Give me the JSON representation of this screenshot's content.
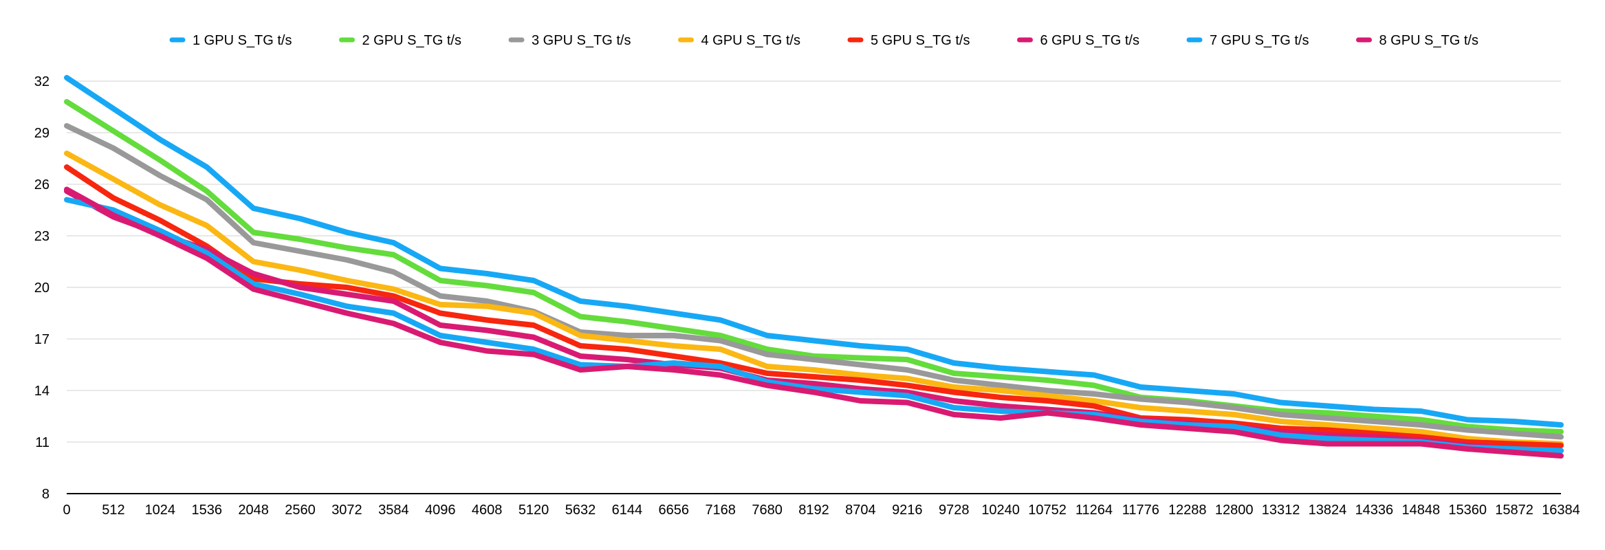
{
  "chart_data": {
    "type": "line",
    "legend_position": "top",
    "grid": true,
    "ylim": [
      8,
      32
    ],
    "yticks": [
      8,
      11,
      14,
      17,
      20,
      23,
      26,
      29,
      32
    ],
    "categories": [
      "0",
      "512",
      "1024",
      "1536",
      "2048",
      "2560",
      "3072",
      "3584",
      "4096",
      "4608",
      "5120",
      "5632",
      "6144",
      "6656",
      "7168",
      "7680",
      "8192",
      "8704",
      "9216",
      "9728",
      "10240",
      "10752",
      "11264",
      "11776",
      "12288",
      "12800",
      "13312",
      "13824",
      "14336",
      "14848",
      "15360",
      "15872",
      "16384"
    ],
    "series": [
      {
        "name": "1 GPU S_TG t/s",
        "color": "#17a8f5",
        "values": [
          32.2,
          30.4,
          28.6,
          27.0,
          24.6,
          24.0,
          23.2,
          22.6,
          21.1,
          20.8,
          20.4,
          19.2,
          18.9,
          18.5,
          18.1,
          17.2,
          16.9,
          16.6,
          16.4,
          15.6,
          15.3,
          15.1,
          14.9,
          14.2,
          14.0,
          13.8,
          13.3,
          13.1,
          12.9,
          12.8,
          12.3,
          12.2,
          12.0
        ]
      },
      {
        "name": "2 GPU S_TG t/s",
        "color": "#63dc3c",
        "values": [
          30.8,
          29.1,
          27.4,
          25.6,
          23.2,
          22.8,
          22.3,
          21.9,
          20.4,
          20.1,
          19.7,
          18.3,
          18.0,
          17.6,
          17.2,
          16.4,
          16.0,
          15.9,
          15.8,
          15.0,
          14.8,
          14.6,
          14.3,
          13.6,
          13.4,
          13.1,
          12.8,
          12.7,
          12.5,
          12.3,
          11.9,
          11.7,
          11.6
        ]
      },
      {
        "name": "3 GPU S_TG t/s",
        "color": "#999999",
        "values": [
          29.4,
          28.1,
          26.5,
          25.1,
          22.6,
          22.1,
          21.6,
          20.9,
          19.5,
          19.2,
          18.6,
          17.4,
          17.2,
          17.2,
          16.9,
          16.1,
          15.8,
          15.5,
          15.2,
          14.6,
          14.3,
          14.0,
          13.8,
          13.5,
          13.3,
          13.0,
          12.6,
          12.4,
          12.2,
          12.0,
          11.7,
          11.5,
          11.3
        ]
      },
      {
        "name": "4 GPU S_TG t/s",
        "color": "#fbb713",
        "values": [
          27.8,
          26.3,
          24.8,
          23.6,
          21.5,
          21.0,
          20.4,
          19.9,
          19.0,
          18.9,
          18.5,
          17.2,
          16.9,
          16.6,
          16.4,
          15.4,
          15.2,
          14.9,
          14.7,
          14.2,
          14.0,
          13.7,
          13.4,
          13.0,
          12.8,
          12.6,
          12.2,
          12.0,
          11.8,
          11.6,
          11.2,
          11.0,
          10.9
        ]
      },
      {
        "name": "5 GPU S_TG t/s",
        "color": "#f7260f",
        "values": [
          27.0,
          25.2,
          23.9,
          22.4,
          20.5,
          20.2,
          20.0,
          19.5,
          18.5,
          18.1,
          17.8,
          16.6,
          16.4,
          16.0,
          15.6,
          15.0,
          14.8,
          14.6,
          14.3,
          13.9,
          13.6,
          13.4,
          13.1,
          12.4,
          12.3,
          12.1,
          11.8,
          11.7,
          11.5,
          11.3,
          11.0,
          10.9,
          10.8
        ]
      },
      {
        "name": "6 GPU S_TG t/s",
        "color": "#d91a72",
        "values": [
          25.6,
          24.1,
          23.1,
          22.2,
          20.8,
          20.0,
          19.6,
          19.2,
          17.8,
          17.5,
          17.1,
          16.0,
          15.8,
          15.5,
          15.3,
          14.6,
          14.4,
          14.1,
          13.9,
          13.4,
          13.1,
          12.9,
          12.7,
          12.3,
          12.1,
          11.9,
          11.6,
          11.4,
          11.3,
          11.1,
          10.8,
          10.6,
          10.5
        ]
      },
      {
        "name": "7 GPU S_TG t/s",
        "color": "#17a8f5",
        "values": [
          25.1,
          24.5,
          23.3,
          22.0,
          20.2,
          19.6,
          18.9,
          18.5,
          17.2,
          16.8,
          16.4,
          15.5,
          15.4,
          15.6,
          15.4,
          14.5,
          14.1,
          13.9,
          13.7,
          13.0,
          12.8,
          12.7,
          12.6,
          12.2,
          12.0,
          11.9,
          11.4,
          11.2,
          11.1,
          11.0,
          10.7,
          10.6,
          10.5
        ]
      },
      {
        "name": "8 GPU S_TG t/s",
        "color": "#d91a72",
        "values": [
          25.7,
          24.2,
          23.0,
          21.7,
          19.9,
          19.2,
          18.5,
          17.9,
          16.8,
          16.3,
          16.1,
          15.2,
          15.4,
          15.2,
          14.9,
          14.3,
          13.9,
          13.4,
          13.3,
          12.6,
          12.4,
          12.7,
          12.4,
          12.0,
          11.8,
          11.6,
          11.1,
          10.9,
          10.9,
          10.9,
          10.6,
          10.4,
          10.2
        ]
      }
    ]
  }
}
